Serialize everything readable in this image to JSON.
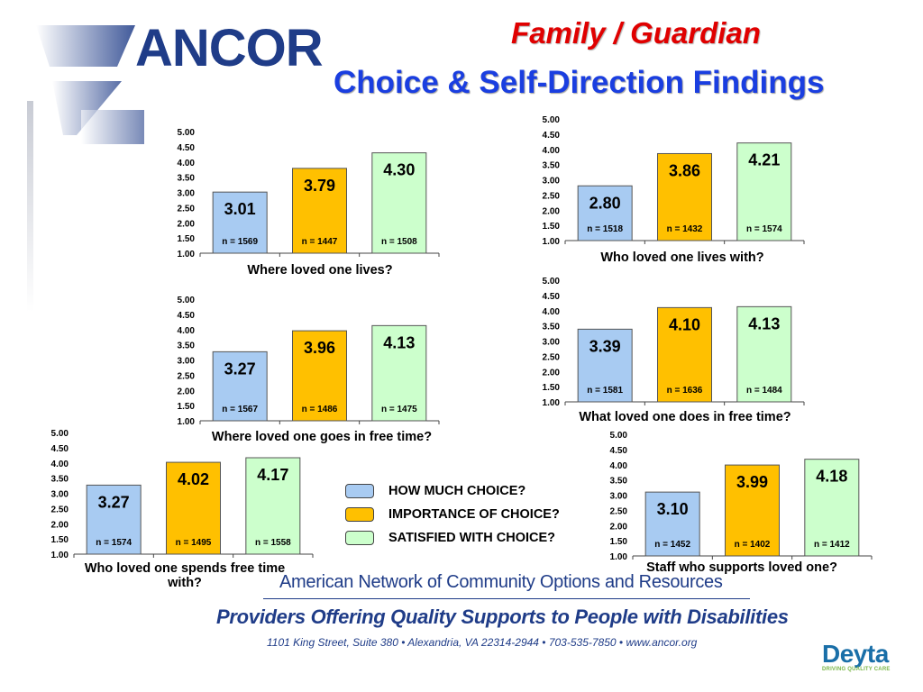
{
  "brand": {
    "logo_text": "ANCOR",
    "logo_color": "#1f3c88",
    "deyta_name": "Deyta",
    "deyta_tagline": "DRIVING QUALITY CARE"
  },
  "header": {
    "title_line1": "Family / Guardian",
    "title_line2": "Choice & Self-Direction Findings"
  },
  "legend": [
    {
      "label": "HOW MUCH CHOICE?",
      "color": "#a8cbf2"
    },
    {
      "label": "IMPORTANCE OF CHOICE?",
      "color": "#ffc000"
    },
    {
      "label": "SATISFIED WITH CHOICE?",
      "color": "#ccffcc"
    }
  ],
  "series_colors": {
    "how_much_choice": "#a8cbf2",
    "importance_of_choice": "#ffc000",
    "satisfied_with_choice": "#ccffcc",
    "bar_stroke": "#555555"
  },
  "footer": {
    "org_name": "American Network of Community Options and Resources",
    "tagline": "Providers Offering Quality Supports to People with Disabilities",
    "address": "1101 King Street, Suite 380 • Alexandria, VA 22314-2944 • 703-535-7850 • www.ancor.org"
  },
  "chart_data": [
    {
      "type": "bar",
      "title": "Where loved one lives?",
      "ylim": [
        1.0,
        5.0
      ],
      "yticks": [
        "1.00",
        "1.50",
        "2.00",
        "2.50",
        "3.00",
        "3.50",
        "4.00",
        "4.50",
        "5.00"
      ],
      "values": [
        3.01,
        3.79,
        4.3
      ],
      "value_labels": [
        "3.01",
        "3.79",
        "4.30"
      ],
      "n_labels": [
        "n = 1569",
        "n = 1447",
        "n = 1508"
      ]
    },
    {
      "type": "bar",
      "title": "Who loved one lives with?",
      "ylim": [
        1.0,
        5.0
      ],
      "yticks": [
        "1.00",
        "1.50",
        "2.00",
        "2.50",
        "3.00",
        "3.50",
        "4.00",
        "4.50",
        "5.00"
      ],
      "values": [
        2.8,
        3.86,
        4.21
      ],
      "value_labels": [
        "2.80",
        "3.86",
        "4.21"
      ],
      "n_labels": [
        "n = 1518",
        "n = 1432",
        "n = 1574"
      ]
    },
    {
      "type": "bar",
      "title": "Where loved one goes in free time?",
      "ylim": [
        1.0,
        5.0
      ],
      "yticks": [
        "1.00",
        "1.50",
        "2.00",
        "2.50",
        "3.00",
        "3.50",
        "4.00",
        "4.50",
        "5.00"
      ],
      "values": [
        3.27,
        3.96,
        4.13
      ],
      "value_labels": [
        "3.27",
        "3.96",
        "4.13"
      ],
      "n_labels": [
        "n = 1567",
        "n = 1486",
        "n = 1475"
      ]
    },
    {
      "type": "bar",
      "title": "What loved one does in free time?",
      "ylim": [
        1.0,
        5.0
      ],
      "yticks": [
        "1.00",
        "1.50",
        "2.00",
        "2.50",
        "3.00",
        "3.50",
        "4.00",
        "4.50",
        "5.00"
      ],
      "values": [
        3.39,
        4.1,
        4.13
      ],
      "value_labels": [
        "3.39",
        "4.10",
        "4.13"
      ],
      "n_labels": [
        "n = 1581",
        "n = 1636",
        "n = 1484"
      ]
    },
    {
      "type": "bar",
      "title": "Who loved one spends free time with?",
      "ylim": [
        1.0,
        5.0
      ],
      "yticks": [
        "1.00",
        "1.50",
        "2.00",
        "2.50",
        "3.00",
        "3.50",
        "4.00",
        "4.50",
        "5.00"
      ],
      "values": [
        3.27,
        4.02,
        4.17
      ],
      "value_labels": [
        "3.27",
        "4.02",
        "4.17"
      ],
      "n_labels": [
        "n = 1574",
        "n = 1495",
        "n = 1558"
      ]
    },
    {
      "type": "bar",
      "title": "Staff who supports loved one?",
      "ylim": [
        1.0,
        5.0
      ],
      "yticks": [
        "1.00",
        "1.50",
        "2.00",
        "2.50",
        "3.00",
        "3.50",
        "4.00",
        "4.50",
        "5.00"
      ],
      "values": [
        3.1,
        3.99,
        4.18
      ],
      "value_labels": [
        "3.10",
        "3.99",
        "4.18"
      ],
      "n_labels": [
        "n = 1452",
        "n = 1402",
        "n = 1412"
      ]
    }
  ]
}
